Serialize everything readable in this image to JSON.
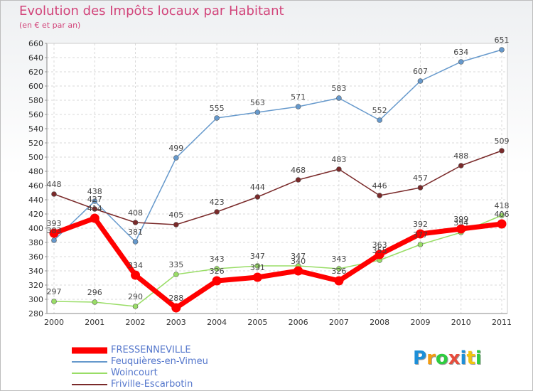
{
  "chart_data": {
    "type": "line",
    "title": "Evolution des Impôts locaux par Habitant",
    "subtitle": "(en € et par an)",
    "x": [
      "2000",
      "2001",
      "2002",
      "2003",
      "2004",
      "2005",
      "2006",
      "2007",
      "2008",
      "2009",
      "2010",
      "2011"
    ],
    "ylim": [
      280,
      660
    ],
    "yticks": [
      280,
      300,
      320,
      340,
      360,
      380,
      400,
      420,
      440,
      460,
      480,
      500,
      520,
      540,
      560,
      580,
      600,
      620,
      640,
      660
    ],
    "grid": true,
    "legend_position": "bottom-left",
    "series": [
      {
        "name": "FRESSENNEVILLE",
        "color": "#ff0000",
        "values": [
          393,
          414,
          334,
          288,
          326,
          331,
          340,
          326,
          363,
          392,
          399,
          406
        ]
      },
      {
        "name": "Feuquières-en-Vimeu",
        "color": "#6699cc",
        "values": [
          383,
          438,
          381,
          499,
          555,
          563,
          571,
          583,
          552,
          607,
          634,
          651
        ]
      },
      {
        "name": "Woincourt",
        "color": "#99dd66",
        "values": [
          297,
          296,
          290,
          335,
          343,
          347,
          347,
          343,
          355,
          377,
          394,
          418
        ]
      },
      {
        "name": "Friville-Escarbotin",
        "color": "#7a2a2a",
        "values": [
          448,
          427,
          408,
          405,
          423,
          444,
          468,
          483,
          446,
          457,
          488,
          509
        ]
      }
    ]
  },
  "logo": {
    "letters": [
      "P",
      "r",
      "o",
      "x",
      "i",
      "t",
      "i"
    ],
    "colors": [
      "#1d8fd8",
      "#f39c12",
      "#2ecc40",
      "#e74c3c",
      "#1d8fd8",
      "#f1c40f",
      "#2ecc40"
    ]
  }
}
